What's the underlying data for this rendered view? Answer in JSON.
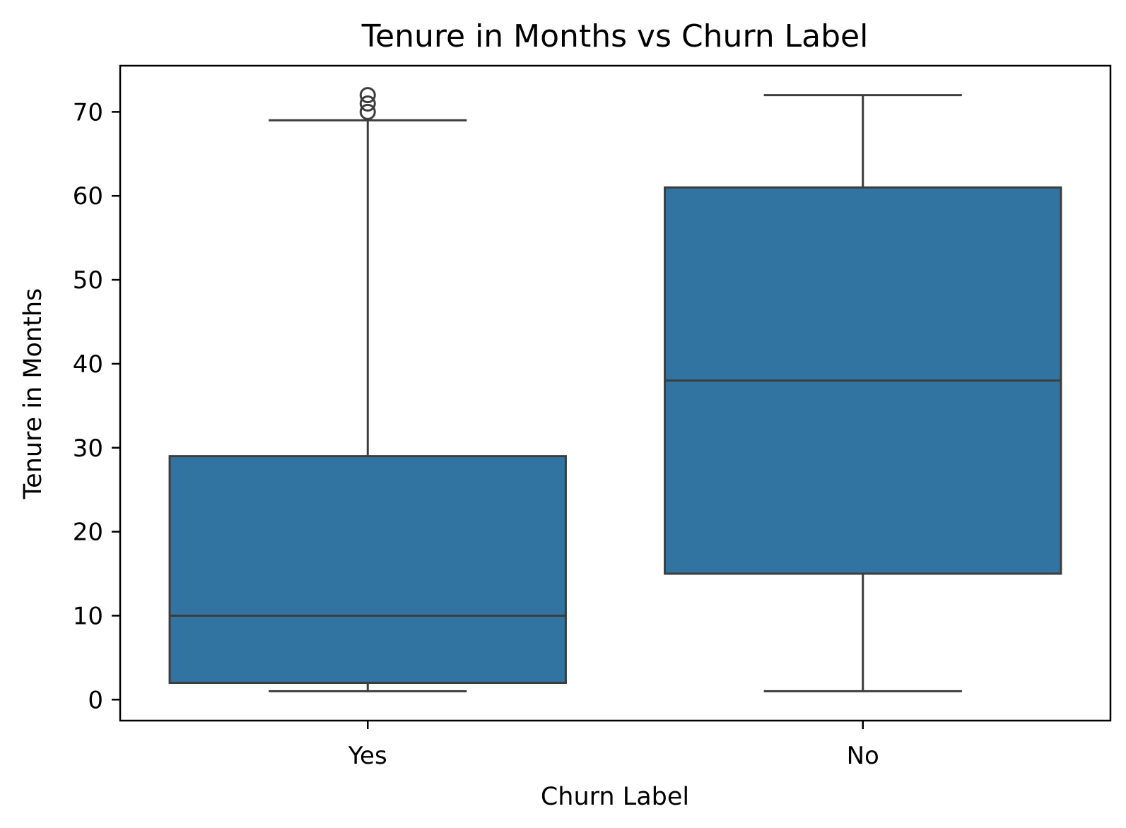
{
  "chart_data": {
    "type": "box",
    "title": "Tenure in Months vs Churn Label",
    "xlabel": "Churn Label",
    "ylabel": "Tenure in Months",
    "categories": [
      "Yes",
      "No"
    ],
    "yticks": [
      0,
      10,
      20,
      30,
      40,
      50,
      60,
      70
    ],
    "ylim": [
      -2.5,
      75.5
    ],
    "grid": false,
    "legend": "none",
    "colors": {
      "box_fill": "#3274a1",
      "line": "#3d3d3d",
      "axis": "#000000",
      "background": "#ffffff"
    },
    "series": [
      {
        "category": "Yes",
        "whisker_low": 1,
        "q1": 2,
        "median": 10,
        "q3": 29,
        "whisker_high": 69,
        "outliers": [
          70,
          71,
          72
        ]
      },
      {
        "category": "No",
        "whisker_low": 1,
        "q1": 15,
        "median": 38,
        "q3": 61,
        "whisker_high": 72,
        "outliers": []
      }
    ]
  }
}
